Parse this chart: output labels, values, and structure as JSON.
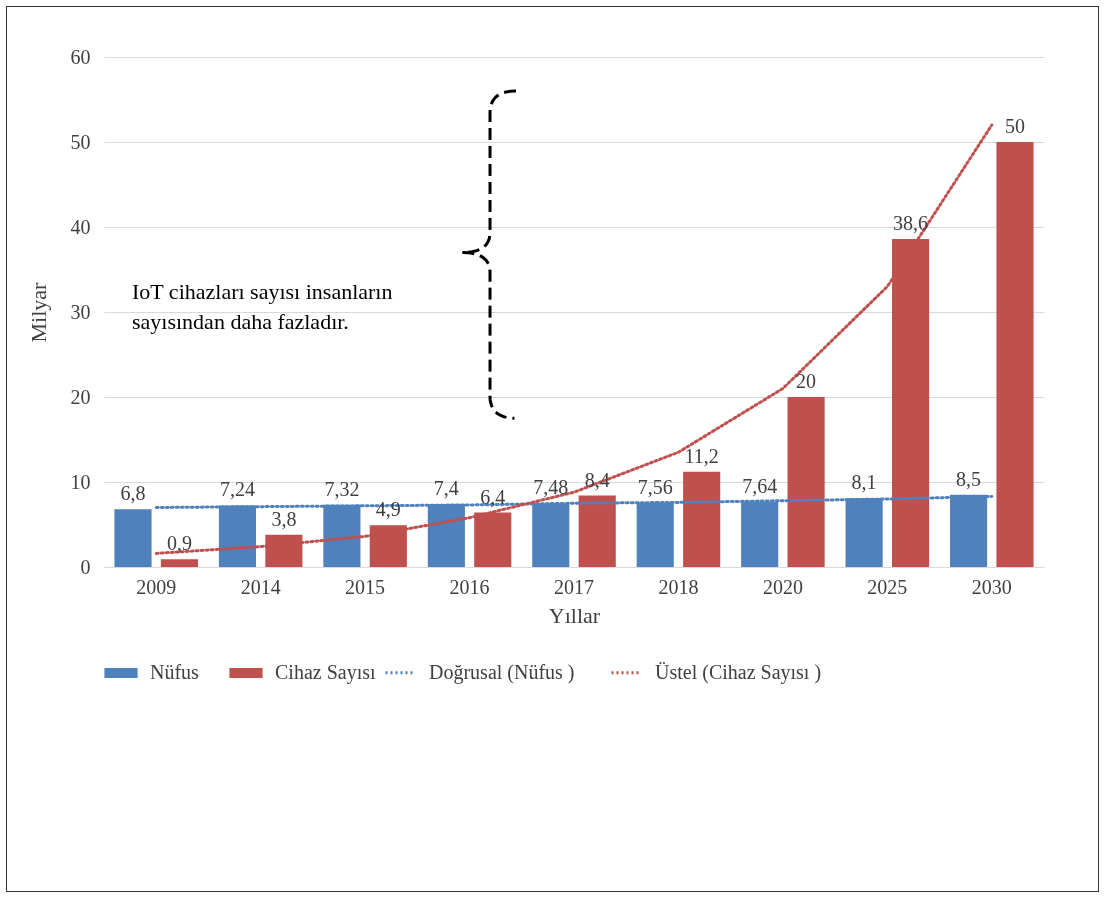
{
  "chart_data": {
    "type": "bar",
    "xlabel": "Yıllar",
    "ylabel": "Milyar",
    "categories": [
      "2009",
      "2014",
      "2015",
      "2016",
      "2017",
      "2018",
      "2020",
      "2025",
      "2030"
    ],
    "series": [
      {
        "name": "Nüfus",
        "color": "#4f81bd",
        "values": [
          6.8,
          7.24,
          7.32,
          7.4,
          7.48,
          7.56,
          7.64,
          8.1,
          8.5
        ],
        "value_labels": [
          "6,8",
          "7,24",
          "7,32",
          "7,4",
          "7,48",
          "7,56",
          "7,64",
          "8,1",
          "8,5"
        ]
      },
      {
        "name": "Cihaz Sayısı",
        "color": "#c0504d",
        "values": [
          0.9,
          3.8,
          4.9,
          6.4,
          8.4,
          11.2,
          20,
          38.6,
          50
        ],
        "value_labels": [
          "0,9",
          "3,8",
          "4,9",
          "6,4",
          "8,4",
          "11,2",
          "20",
          "38,6",
          "50"
        ]
      },
      {
        "name": "Doğrusal (Nüfus )",
        "type": "line",
        "line_style": "dotted",
        "color": "#4f81bd",
        "values": [
          7.0,
          7.1,
          7.2,
          7.3,
          7.5,
          7.6,
          7.8,
          8.0,
          8.3
        ]
      },
      {
        "name": "Üstel (Cihaz Sayısı )",
        "type": "line",
        "line_style": "dotted",
        "color": "#c0504d",
        "values": [
          1.6,
          2.4,
          3.6,
          5.8,
          8.8,
          13.5,
          21,
          33,
          52
        ]
      }
    ],
    "ylim": [
      0,
      60
    ],
    "yticks": [
      0,
      10,
      20,
      30,
      40,
      50,
      60
    ],
    "grid": "y",
    "legend": "bottom",
    "annotations": [
      "IoT cihazları sayısı insanların sayısından daha fazladır."
    ]
  }
}
